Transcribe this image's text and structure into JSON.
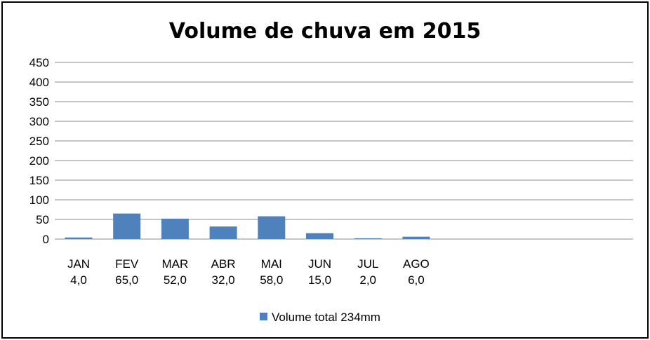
{
  "chart_data": {
    "type": "bar",
    "title": "Volume de chuva em 2015",
    "categories": [
      "JAN",
      "FEV",
      "MAR",
      "ABR",
      "MAI",
      "JUN",
      "JUL",
      "AGO"
    ],
    "category_value_labels": [
      "4,0",
      "65,0",
      "52,0",
      "32,0",
      "58,0",
      "15,0",
      "2,0",
      "6,0"
    ],
    "series": [
      {
        "name": "Volume total 234mm",
        "values": [
          4,
          65,
          52,
          32,
          58,
          15,
          2,
          6
        ],
        "color": "#4F81BD"
      }
    ],
    "xlabel": "",
    "ylabel": "",
    "ylim": [
      0,
      450
    ],
    "yticks": [
      "0",
      "50",
      "100",
      "150",
      "200",
      "250",
      "300",
      "350",
      "400",
      "450"
    ],
    "grid": true,
    "legend_position": "bottom"
  }
}
